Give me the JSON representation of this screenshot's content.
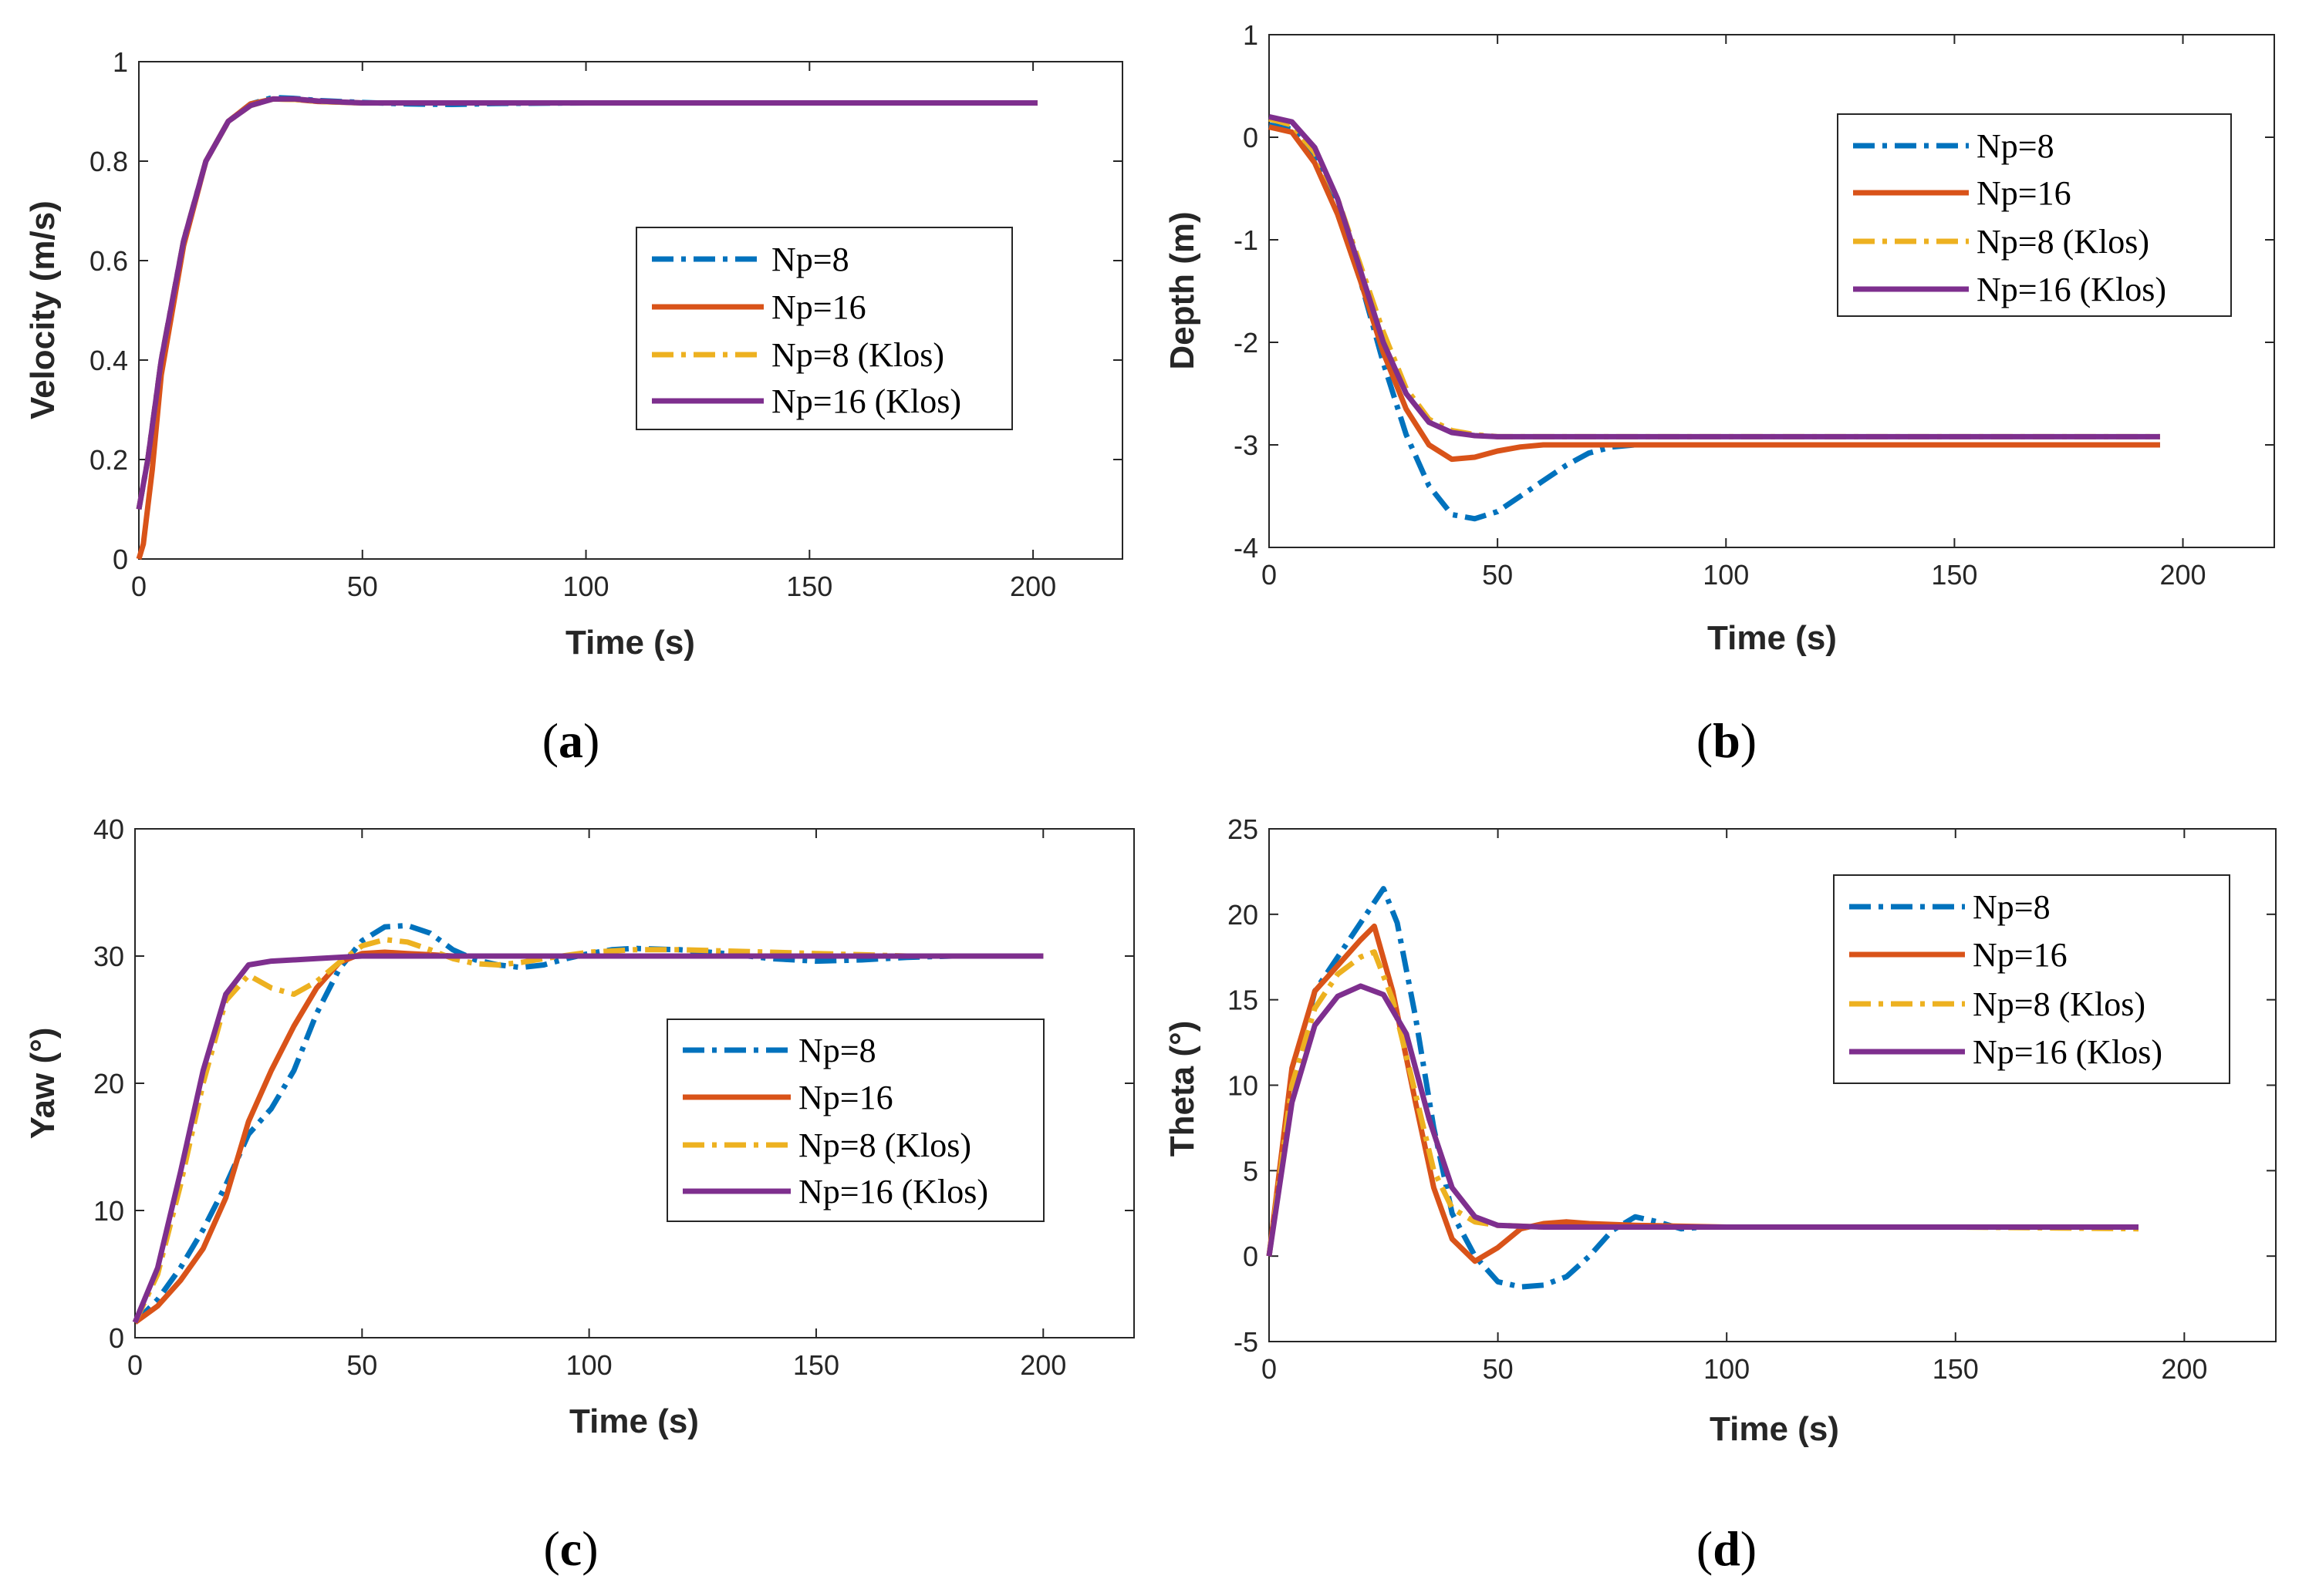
{
  "colors": {
    "np8": "#0072bd",
    "np16": "#d95319",
    "np8klos": "#edb120",
    "np16klos": "#7e2f8e",
    "axis": "#262626"
  },
  "chart_data": [
    {
      "type": "line",
      "panel_label": "a",
      "xlabel": "Time (s)",
      "ylabel": "Velocity (m/s)",
      "xlim": [
        0,
        220
      ],
      "ylim": [
        0,
        1
      ],
      "xticks": [
        "0",
        "50",
        "100",
        "150",
        "200"
      ],
      "yticks": [
        "0",
        "0.2",
        "0.4",
        "0.6",
        "0.8",
        "1"
      ],
      "legend_position": "right-middle",
      "series": [
        {
          "name": "Np=8",
          "style": "dashdot",
          "color": "#0072bd",
          "x": [
            0,
            2,
            5,
            10,
            15,
            20,
            25,
            30,
            35,
            40,
            50,
            60,
            70,
            80,
            100,
            150,
            201
          ],
          "y": [
            0.1,
            0.2,
            0.4,
            0.64,
            0.8,
            0.88,
            0.915,
            0.928,
            0.926,
            0.922,
            0.918,
            0.915,
            0.914,
            0.916,
            0.917,
            0.917,
            0.917
          ]
        },
        {
          "name": "Np=16",
          "style": "solid",
          "color": "#d95319",
          "x": [
            0,
            1,
            3,
            5,
            10,
            15,
            20,
            25,
            30,
            35,
            40,
            50,
            60,
            100,
            150,
            201
          ],
          "y": [
            0,
            0.03,
            0.18,
            0.37,
            0.63,
            0.8,
            0.88,
            0.915,
            0.925,
            0.924,
            0.92,
            0.917,
            0.917,
            0.917,
            0.917,
            0.917
          ]
        },
        {
          "name": "Np=8 (Klos)",
          "style": "dashdot",
          "color": "#edb120",
          "x": [
            0,
            2,
            5,
            10,
            15,
            20,
            25,
            30,
            35,
            40,
            50,
            100,
            150,
            201
          ],
          "y": [
            0.1,
            0.2,
            0.4,
            0.64,
            0.8,
            0.88,
            0.912,
            0.925,
            0.924,
            0.92,
            0.917,
            0.917,
            0.917,
            0.917
          ]
        },
        {
          "name": "Np=16 (Klos)",
          "style": "solid",
          "color": "#7e2f8e",
          "x": [
            0,
            2,
            5,
            10,
            15,
            20,
            25,
            30,
            35,
            40,
            50,
            60,
            100,
            150,
            201
          ],
          "y": [
            0.1,
            0.2,
            0.4,
            0.64,
            0.8,
            0.88,
            0.912,
            0.925,
            0.925,
            0.921,
            0.917,
            0.917,
            0.917,
            0.917,
            0.917
          ]
        }
      ]
    },
    {
      "type": "line",
      "panel_label": "b",
      "xlabel": "Time (s)",
      "ylabel": "Depth (m)",
      "xlim": [
        0,
        220
      ],
      "ylim": [
        -4,
        1
      ],
      "xticks": [
        "0",
        "50",
        "100",
        "150",
        "200"
      ],
      "yticks": [
        "-4",
        "-3",
        "-2",
        "-1",
        "0",
        "1"
      ],
      "legend_position": "top-right",
      "series": [
        {
          "name": "Np=8",
          "style": "dashdot",
          "color": "#0072bd",
          "x": [
            0,
            5,
            10,
            15,
            20,
            25,
            30,
            35,
            40,
            45,
            50,
            55,
            60,
            65,
            70,
            75,
            80,
            90,
            100,
            150,
            195
          ],
          "y": [
            0.12,
            0.08,
            -0.2,
            -0.7,
            -1.4,
            -2.2,
            -2.9,
            -3.4,
            -3.68,
            -3.72,
            -3.65,
            -3.5,
            -3.35,
            -3.2,
            -3.08,
            -3.02,
            -3.0,
            -3.0,
            -3.0,
            -3.0,
            -3.0
          ]
        },
        {
          "name": "Np=16",
          "style": "solid",
          "color": "#d95319",
          "x": [
            0,
            5,
            10,
            15,
            20,
            25,
            30,
            35,
            40,
            45,
            50,
            55,
            60,
            70,
            80,
            100,
            150,
            195
          ],
          "y": [
            0.1,
            0.05,
            -0.25,
            -0.75,
            -1.4,
            -2.1,
            -2.65,
            -3.0,
            -3.14,
            -3.12,
            -3.06,
            -3.02,
            -3.0,
            -3.0,
            -3.0,
            -3.0,
            -3.0,
            -3.0
          ]
        },
        {
          "name": "Np=8 (Klos)",
          "style": "dashdot",
          "color": "#edb120",
          "x": [
            0,
            5,
            10,
            15,
            20,
            25,
            30,
            35,
            40,
            45,
            50,
            60,
            70,
            100,
            150,
            195
          ],
          "y": [
            0.18,
            0.12,
            -0.15,
            -0.6,
            -1.25,
            -1.9,
            -2.45,
            -2.75,
            -2.86,
            -2.9,
            -2.92,
            -2.92,
            -2.92,
            -2.92,
            -2.92,
            -2.92
          ]
        },
        {
          "name": "Np=16 (Klos)",
          "style": "solid",
          "color": "#7e2f8e",
          "x": [
            0,
            5,
            10,
            15,
            20,
            25,
            30,
            35,
            40,
            45,
            50,
            60,
            70,
            100,
            150,
            195
          ],
          "y": [
            0.2,
            0.15,
            -0.1,
            -0.6,
            -1.3,
            -2.0,
            -2.5,
            -2.78,
            -2.88,
            -2.91,
            -2.92,
            -2.92,
            -2.92,
            -2.92,
            -2.92,
            -2.92
          ]
        }
      ]
    },
    {
      "type": "line",
      "panel_label": "c",
      "xlabel": "Time (s)",
      "ylabel": "Yaw (°)",
      "xlim": [
        0,
        220
      ],
      "ylim": [
        0,
        40
      ],
      "xticks": [
        "0",
        "50",
        "100",
        "150",
        "200"
      ],
      "yticks": [
        "0",
        "10",
        "20",
        "30",
        "40"
      ],
      "legend_position": "bottom-right",
      "series": [
        {
          "name": "Np=8",
          "style": "dashdot",
          "color": "#0072bd",
          "x": [
            0,
            5,
            10,
            15,
            20,
            25,
            30,
            35,
            40,
            45,
            50,
            55,
            60,
            65,
            70,
            75,
            80,
            85,
            90,
            95,
            100,
            105,
            110,
            120,
            130,
            140,
            150,
            160,
            170,
            180,
            190,
            200
          ],
          "y": [
            1.2,
            3,
            5.5,
            8.5,
            12,
            16,
            18,
            21,
            25.5,
            29,
            31.2,
            32.3,
            32.4,
            31.8,
            30.5,
            29.7,
            29.3,
            29.1,
            29.3,
            29.8,
            30.2,
            30.5,
            30.6,
            30.5,
            30.2,
            29.8,
            29.6,
            29.7,
            29.9,
            30.0,
            30.0,
            30.0
          ]
        },
        {
          "name": "Np=16",
          "style": "solid",
          "color": "#d95319",
          "x": [
            0,
            5,
            10,
            15,
            20,
            25,
            30,
            35,
            40,
            45,
            50,
            55,
            60,
            65,
            70,
            80,
            100,
            150,
            200
          ],
          "y": [
            1.2,
            2.5,
            4.5,
            7,
            11,
            17,
            21,
            24.5,
            27.5,
            29.5,
            30.2,
            30.3,
            30.2,
            30.1,
            30.0,
            30.0,
            30.0,
            30.0,
            30.0
          ]
        },
        {
          "name": "Np=8 (Klos)",
          "style": "dashdot",
          "color": "#edb120",
          "x": [
            0,
            5,
            10,
            15,
            20,
            25,
            30,
            35,
            40,
            45,
            50,
            55,
            60,
            65,
            70,
            75,
            80,
            85,
            90,
            100,
            110,
            120,
            130,
            140,
            150,
            160,
            170,
            180,
            190,
            200
          ],
          "y": [
            1.2,
            5,
            12,
            20,
            26.5,
            28.5,
            27.5,
            27,
            28,
            29.5,
            30.8,
            31.3,
            31.1,
            30.5,
            29.8,
            29.4,
            29.3,
            29.5,
            29.8,
            30.3,
            30.5,
            30.5,
            30.4,
            30.3,
            30.2,
            30.1,
            30.0,
            30.0,
            30.0,
            30.0
          ]
        },
        {
          "name": "Np=16 (Klos)",
          "style": "solid",
          "color": "#7e2f8e",
          "x": [
            0,
            5,
            10,
            15,
            20,
            25,
            30,
            40,
            50,
            60,
            70,
            80,
            100,
            150,
            200
          ],
          "y": [
            1.2,
            5.5,
            13,
            21,
            27,
            29.3,
            29.6,
            29.8,
            30.0,
            30.0,
            30.0,
            30.0,
            30.0,
            30.0,
            30.0
          ]
        }
      ]
    },
    {
      "type": "line",
      "panel_label": "d",
      "xlabel": "Time (s)",
      "ylabel": "Theta (°)",
      "xlim": [
        0,
        220
      ],
      "ylim": [
        -5,
        25
      ],
      "xticks": [
        "0",
        "50",
        "100",
        "150",
        "200"
      ],
      "yticks": [
        "-5",
        "0",
        "5",
        "10",
        "15",
        "20",
        "25"
      ],
      "legend_position": "top-right",
      "series": [
        {
          "name": "Np=8",
          "style": "dashdot",
          "color": "#0072bd",
          "x": [
            0,
            5,
            10,
            15,
            20,
            25,
            28,
            32,
            36,
            40,
            45,
            50,
            55,
            60,
            65,
            70,
            75,
            80,
            85,
            90,
            95,
            100,
            150,
            190
          ],
          "y": [
            0,
            10,
            15.5,
            17.5,
            19.5,
            21.5,
            19.5,
            14,
            7.5,
            2.5,
            0,
            -1.5,
            -1.8,
            -1.7,
            -1.2,
            0,
            1.5,
            2.3,
            2.0,
            1.6,
            1.7,
            1.7,
            1.7,
            1.7
          ]
        },
        {
          "name": "Np=16",
          "style": "solid",
          "color": "#d95319",
          "x": [
            0,
            5,
            10,
            15,
            20,
            23,
            27,
            32,
            36,
            40,
            45,
            50,
            55,
            60,
            65,
            70,
            80,
            100,
            150,
            190
          ],
          "y": [
            0,
            11,
            15.5,
            17,
            18.5,
            19.3,
            15.5,
            9,
            4,
            1,
            -0.3,
            0.5,
            1.6,
            1.9,
            2.0,
            1.9,
            1.8,
            1.7,
            1.7,
            1.7
          ]
        },
        {
          "name": "Np=8 (Klos)",
          "style": "dashdot",
          "color": "#edb120",
          "x": [
            0,
            5,
            10,
            15,
            20,
            23,
            27,
            32,
            36,
            40,
            45,
            50,
            60,
            100,
            150,
            190
          ],
          "y": [
            0,
            10,
            14.5,
            16.5,
            17.5,
            17.8,
            15,
            9.5,
            5,
            2.8,
            2,
            1.8,
            1.7,
            1.7,
            1.7,
            1.6
          ]
        },
        {
          "name": "Np=16 (Klos)",
          "style": "solid",
          "color": "#7e2f8e",
          "x": [
            0,
            5,
            10,
            15,
            20,
            25,
            30,
            35,
            40,
            45,
            50,
            60,
            100,
            150,
            190
          ],
          "y": [
            0,
            9,
            13.5,
            15.2,
            15.8,
            15.3,
            13,
            8,
            4,
            2.3,
            1.8,
            1.7,
            1.7,
            1.7,
            1.7
          ]
        }
      ]
    }
  ]
}
